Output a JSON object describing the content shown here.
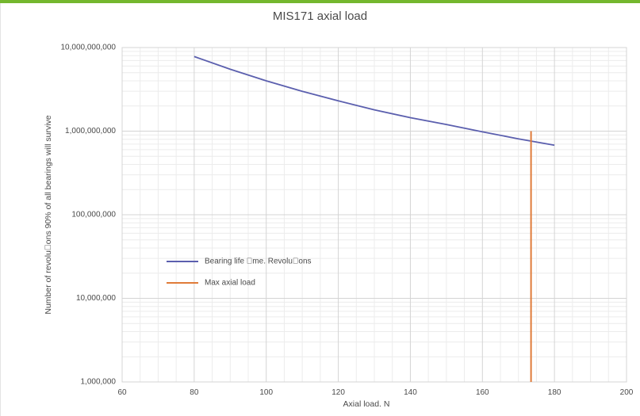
{
  "chart_data": {
    "type": "line",
    "title": "MIS171 axial load",
    "xlabel": "Axial load. N",
    "ylabel": "Number of revolu\u0000ons 90% of all bearings will survive",
    "xlim": [
      60,
      200
    ],
    "ylim": [
      1000000,
      10000000000
    ],
    "y_scale": "log",
    "grid": true,
    "legend_placement": "left-center",
    "x_ticks": [
      "60",
      "80",
      "100",
      "120",
      "140",
      "160",
      "180",
      "200"
    ],
    "y_ticks": [
      "1,000,000",
      "10,000,000",
      "100,000,000",
      "1,000,000,000",
      "10,000,000,000"
    ],
    "series": [
      {
        "name": "Bearing life \u0000me. Revolu\u0000ons",
        "color": "#5b5fae",
        "x": [
          80,
          90,
          100,
          110,
          120,
          130,
          140,
          150,
          160,
          170,
          180
        ],
        "y": [
          7800000000,
          5500000000,
          4000000000,
          3000000000,
          2300000000,
          1800000000,
          1450000000,
          1200000000,
          980000000,
          810000000,
          680000000
        ]
      },
      {
        "name": "Max axial load",
        "color": "#e07b39",
        "x": [
          173.5,
          173.5
        ],
        "y": [
          1000000,
          1000000000
        ]
      }
    ]
  }
}
